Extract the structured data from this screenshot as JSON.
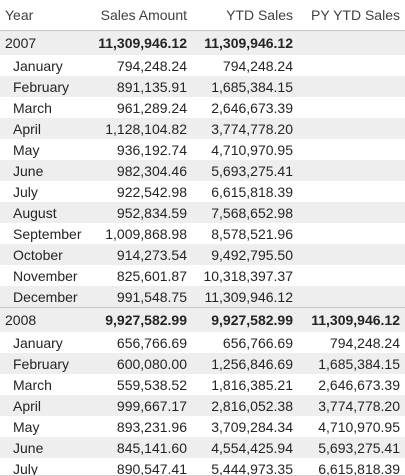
{
  "columns": [
    "Year",
    "Sales Amount",
    "YTD Sales",
    "PY YTD Sales"
  ],
  "years": [
    {
      "year": "2007",
      "sales": "11,309,946.12",
      "ytd": "11,309,946.12",
      "py": "",
      "months": [
        {
          "m": "January",
          "sales": "794,248.24",
          "ytd": "794,248.24",
          "py": ""
        },
        {
          "m": "February",
          "sales": "891,135.91",
          "ytd": "1,685,384.15",
          "py": ""
        },
        {
          "m": "March",
          "sales": "961,289.24",
          "ytd": "2,646,673.39",
          "py": ""
        },
        {
          "m": "April",
          "sales": "1,128,104.82",
          "ytd": "3,774,778.20",
          "py": ""
        },
        {
          "m": "May",
          "sales": "936,192.74",
          "ytd": "4,710,970.95",
          "py": ""
        },
        {
          "m": "June",
          "sales": "982,304.46",
          "ytd": "5,693,275.41",
          "py": ""
        },
        {
          "m": "July",
          "sales": "922,542.98",
          "ytd": "6,615,818.39",
          "py": ""
        },
        {
          "m": "August",
          "sales": "952,834.59",
          "ytd": "7,568,652.98",
          "py": ""
        },
        {
          "m": "September",
          "sales": "1,009,868.98",
          "ytd": "8,578,521.96",
          "py": ""
        },
        {
          "m": "October",
          "sales": "914,273.54",
          "ytd": "9,492,795.50",
          "py": ""
        },
        {
          "m": "November",
          "sales": "825,601.87",
          "ytd": "10,318,397.37",
          "py": ""
        },
        {
          "m": "December",
          "sales": "991,548.75",
          "ytd": "11,309,946.12",
          "py": ""
        }
      ]
    },
    {
      "year": "2008",
      "sales": "9,927,582.99",
      "ytd": "9,927,582.99",
      "py": "11,309,946.12",
      "months": [
        {
          "m": "January",
          "sales": "656,766.69",
          "ytd": "656,766.69",
          "py": "794,248.24"
        },
        {
          "m": "February",
          "sales": "600,080.00",
          "ytd": "1,256,846.69",
          "py": "1,685,384.15"
        },
        {
          "m": "March",
          "sales": "559,538.52",
          "ytd": "1,816,385.21",
          "py": "2,646,673.39"
        },
        {
          "m": "April",
          "sales": "999,667.17",
          "ytd": "2,816,052.38",
          "py": "3,774,778.20"
        },
        {
          "m": "May",
          "sales": "893,231.96",
          "ytd": "3,709,284.34",
          "py": "4,710,970.95"
        },
        {
          "m": "June",
          "sales": "845,141.60",
          "ytd": "4,554,425.94",
          "py": "5,693,275.41"
        },
        {
          "m": "July",
          "sales": "890,547.41",
          "ytd": "5,444,973.35",
          "py": "6,615,818.39"
        }
      ]
    }
  ]
}
